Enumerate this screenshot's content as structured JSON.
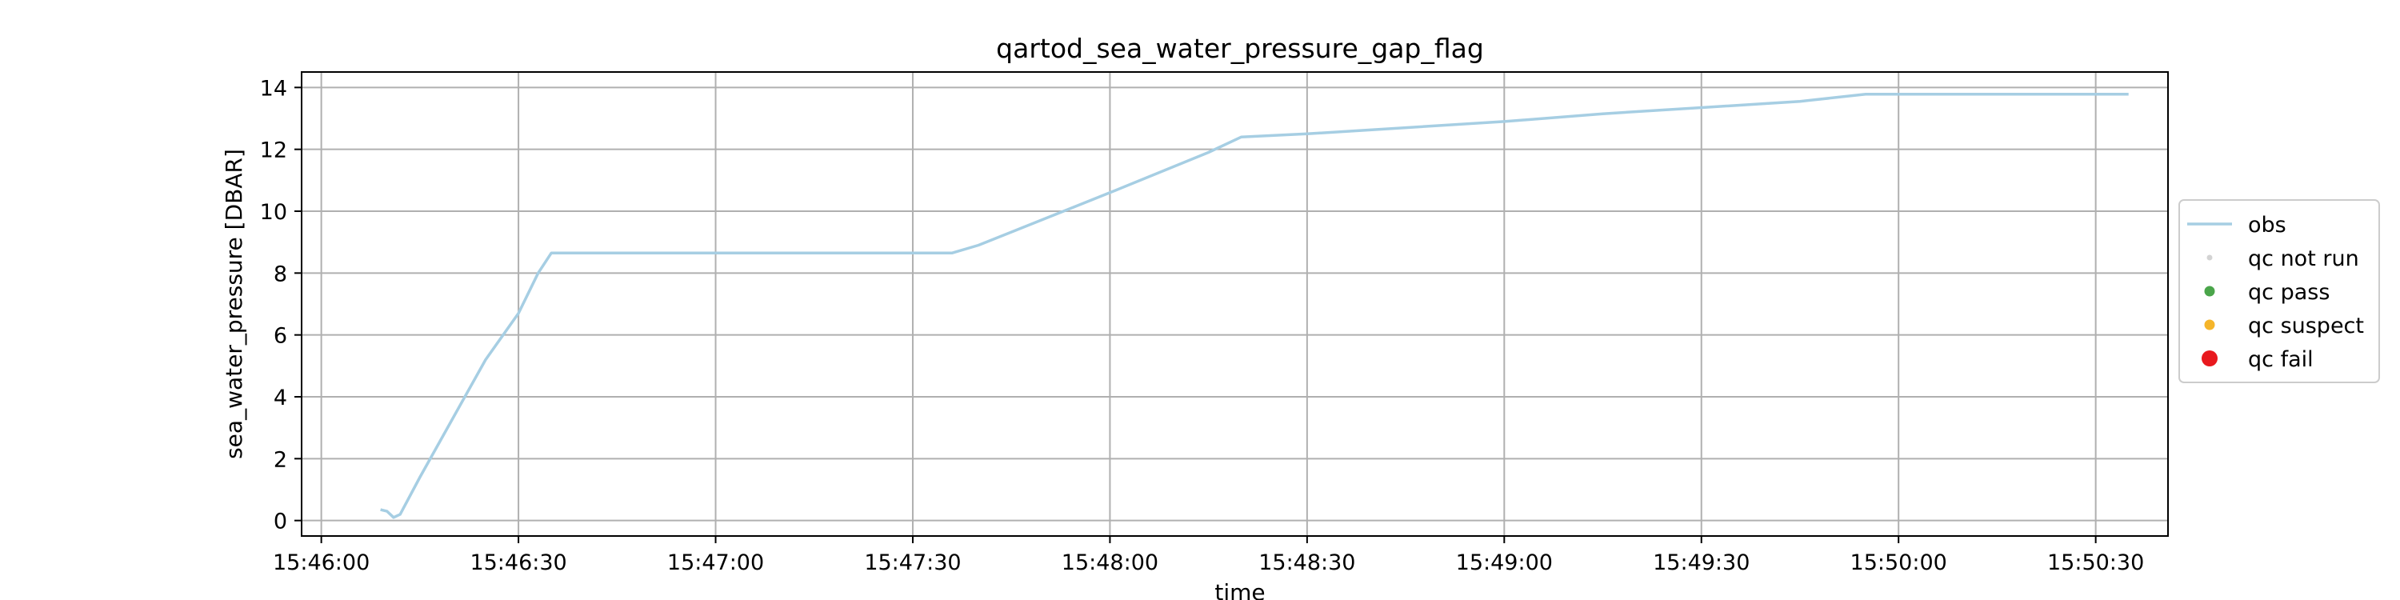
{
  "chart_data": {
    "type": "line",
    "title": "qartod_sea_water_pressure_gap_flag",
    "xlabel": "time",
    "ylabel": "sea_water_pressure [DBAR]",
    "xlim": [
      "15:45:57",
      "15:50:41"
    ],
    "ylim": [
      -0.5,
      14.5
    ],
    "x_ticks": [
      "15:46:00",
      "15:46:30",
      "15:47:00",
      "15:47:30",
      "15:48:00",
      "15:48:30",
      "15:49:00",
      "15:49:30",
      "15:50:00",
      "15:50:30"
    ],
    "y_ticks": [
      0,
      2,
      4,
      6,
      8,
      10,
      12,
      14
    ],
    "grid": true,
    "legend_position": "right-outside",
    "series": [
      {
        "name": "obs",
        "color": "#a6cee3",
        "x": [
          "15:46:09",
          "15:46:10",
          "15:46:11",
          "15:46:12",
          "15:46:15",
          "15:46:20",
          "15:46:25",
          "15:46:30",
          "15:46:33",
          "15:46:35",
          "15:47:00",
          "15:47:30",
          "15:47:36",
          "15:47:40",
          "15:48:00",
          "15:48:15",
          "15:48:20",
          "15:48:30",
          "15:48:45",
          "15:49:00",
          "15:49:15",
          "15:49:30",
          "15:49:45",
          "15:49:55",
          "15:50:00",
          "15:50:15",
          "15:50:35"
        ],
        "values": [
          0.35,
          0.3,
          0.1,
          0.2,
          1.4,
          3.3,
          5.2,
          6.7,
          8.0,
          8.65,
          8.65,
          8.65,
          8.65,
          8.9,
          10.6,
          11.9,
          12.4,
          12.5,
          12.7,
          12.9,
          13.15,
          13.35,
          13.55,
          13.78,
          13.78,
          13.78,
          13.78
        ]
      }
    ],
    "legend": [
      {
        "label": "obs",
        "kind": "line",
        "color": "#a6cee3"
      },
      {
        "label": "qc not run",
        "kind": "dot",
        "color": "#d3d3d3"
      },
      {
        "label": "qc pass",
        "kind": "dot",
        "color": "#4aa54a"
      },
      {
        "label": "qc suspect",
        "kind": "dot",
        "color": "#f5b52a"
      },
      {
        "label": "qc fail",
        "kind": "dot-large",
        "color": "#e8191e"
      }
    ]
  }
}
